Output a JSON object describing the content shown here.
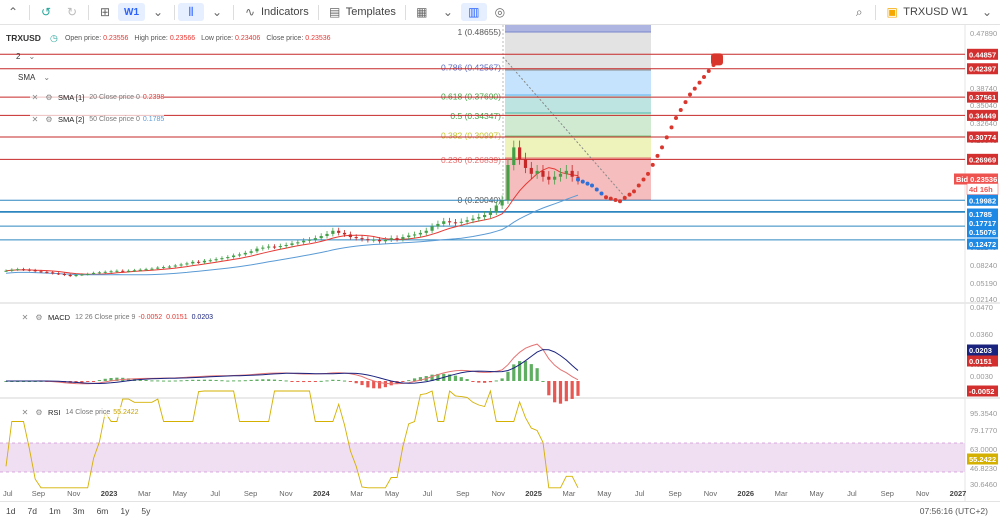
{
  "toolbar": {
    "interval": "W1",
    "indicators_label": "Indicators",
    "templates_label": "Templates",
    "symbol_label": "TRXUSD W1"
  },
  "legend": {
    "symbol": "TRXUSD",
    "open_label": "Open price:",
    "open_value": "0.23556",
    "high_label": "High price:",
    "high_value": "0.23566",
    "low_label": "Low price:",
    "low_value": "0.23406",
    "close_label": "Close price:",
    "close_value": "0.23536"
  },
  "controls": {
    "count": "2",
    "sma_label": "SMA"
  },
  "indicators": {
    "sma1": {
      "name": "SMA [1]",
      "params": "20 Close price 0",
      "value": "0.2398",
      "color": "#e53935"
    },
    "sma2": {
      "name": "SMA [2]",
      "params": "50 Close price 0",
      "value": "0.1785",
      "color": "#5b9bd5"
    },
    "macd": {
      "name": "MACD",
      "params": "12 26 Close price 9",
      "v1": "-0.0052",
      "v2": "0.0151",
      "v3": "0.0203"
    },
    "rsi": {
      "name": "RSI",
      "params": "14 Close price",
      "value": "55.2422"
    }
  },
  "fib_labels": [
    "1 (0.48655)",
    "0.786 (0.42567)",
    "0.618 (0.37690)",
    "0.5 (0.34347)",
    "0.382 (0.30997)",
    "0.236 (0.26839)",
    "0 (0.20040)"
  ],
  "price_axis": {
    "ticks": [
      "0.47890",
      "0.38740",
      "0.35040",
      "0.32640",
      "0.29940",
      "0.11240",
      "0.08240",
      "0.05190",
      "0.02140"
    ],
    "tags": [
      {
        "label": "0.44857",
        "kind": "red"
      },
      {
        "label": "0.42397",
        "kind": "red"
      },
      {
        "label": "0.37561",
        "kind": "red"
      },
      {
        "label": "0.34449",
        "kind": "red"
      },
      {
        "label": "0.30774",
        "kind": "red"
      },
      {
        "label": "0.26969",
        "kind": "red"
      },
      {
        "label": "Bid 0.23536",
        "kind": "bid"
      },
      {
        "label": "4d 16h",
        "kind": "timer"
      },
      {
        "label": "0.19982",
        "kind": "blue"
      },
      {
        "label": "0.1785",
        "kind": "blue"
      },
      {
        "label": "0.17717",
        "kind": "blue"
      },
      {
        "label": "0.15076",
        "kind": "blue"
      },
      {
        "label": "0.12472",
        "kind": "blue"
      }
    ]
  },
  "macd_axis": {
    "ticks": [
      "0.0470",
      "0.0360",
      "0.0250",
      "0.0030"
    ],
    "tags": [
      {
        "label": "0.0203",
        "kind": "navy"
      },
      {
        "label": "0.0151",
        "kind": "red"
      },
      {
        "label": "-0.0052",
        "kind": "red"
      }
    ]
  },
  "rsi_axis": {
    "ticks": [
      "95.3540",
      "79.1770",
      "63.0000",
      "46.8230",
      "30.6460"
    ],
    "tags": [
      {
        "label": "55.2422",
        "kind": "yellow"
      }
    ]
  },
  "time_axis": [
    "Jul",
    "Sep",
    "Nov",
    "2023",
    "Mar",
    "May",
    "Jul",
    "Sep",
    "Nov",
    "2024",
    "Mar",
    "May",
    "Jul",
    "Sep",
    "Nov",
    "2025",
    "Mar",
    "May",
    "Jul",
    "Sep",
    "Nov",
    "2026",
    "Mar",
    "May",
    "Jul",
    "Sep",
    "Nov",
    "2027"
  ],
  "bottom": {
    "timeframes": [
      "1d",
      "7d",
      "1m",
      "3m",
      "6m",
      "1y",
      "5y"
    ],
    "clock": "07:56:16 (UTC+2)"
  },
  "chart_data": {
    "type": "candlestick",
    "title": "TRXUSD W1",
    "ylim": [
      0.0214,
      0.4789
    ],
    "price_series": [
      0.066,
      0.068,
      0.069,
      0.068,
      0.067,
      0.065,
      0.064,
      0.063,
      0.061,
      0.06,
      0.058,
      0.056,
      0.058,
      0.059,
      0.06,
      0.062,
      0.063,
      0.064,
      0.065,
      0.066,
      0.065,
      0.066,
      0.067,
      0.068,
      0.069,
      0.07,
      0.072,
      0.073,
      0.074,
      0.076,
      0.078,
      0.08,
      0.083,
      0.082,
      0.085,
      0.086,
      0.088,
      0.09,
      0.092,
      0.095,
      0.097,
      0.1,
      0.103,
      0.108,
      0.11,
      0.112,
      0.111,
      0.113,
      0.115,
      0.118,
      0.12,
      0.123,
      0.125,
      0.128,
      0.132,
      0.136,
      0.142,
      0.138,
      0.135,
      0.13,
      0.128,
      0.126,
      0.124,
      0.125,
      0.122,
      0.125,
      0.128,
      0.126,
      0.13,
      0.133,
      0.135,
      0.138,
      0.142,
      0.15,
      0.155,
      0.16,
      0.158,
      0.157,
      0.159,
      0.162,
      0.165,
      0.168,
      0.172,
      0.178,
      0.19,
      0.2,
      0.26,
      0.29,
      0.27,
      0.255,
      0.245,
      0.25,
      0.24,
      0.235,
      0.24,
      0.245,
      0.25,
      0.24,
      0.235
    ],
    "fib_levels": [
      {
        "ratio": 1,
        "price": 0.48655
      },
      {
        "ratio": 0.786,
        "price": 0.42567
      },
      {
        "ratio": 0.618,
        "price": 0.3769
      },
      {
        "ratio": 0.5,
        "price": 0.34347
      },
      {
        "ratio": 0.382,
        "price": 0.30997
      },
      {
        "ratio": 0.236,
        "price": 0.26839
      },
      {
        "ratio": 0,
        "price": 0.2004
      }
    ],
    "resistance": [
      0.44857,
      0.42397,
      0.37561,
      0.34449,
      0.30774,
      0.26969
    ],
    "support": [
      0.19982,
      0.1785,
      0.17717,
      0.15076,
      0.12472
    ],
    "projection_path": [
      0.235,
      0.225,
      0.205,
      0.198,
      0.215,
      0.245,
      0.29,
      0.34,
      0.38,
      0.41,
      0.44
    ],
    "macd": {
      "macd": 0.0151,
      "signal": 0.0203,
      "hist": -0.0052
    },
    "rsi": {
      "value": 55.2422,
      "upper": 63.0,
      "lower": 46.823
    }
  }
}
